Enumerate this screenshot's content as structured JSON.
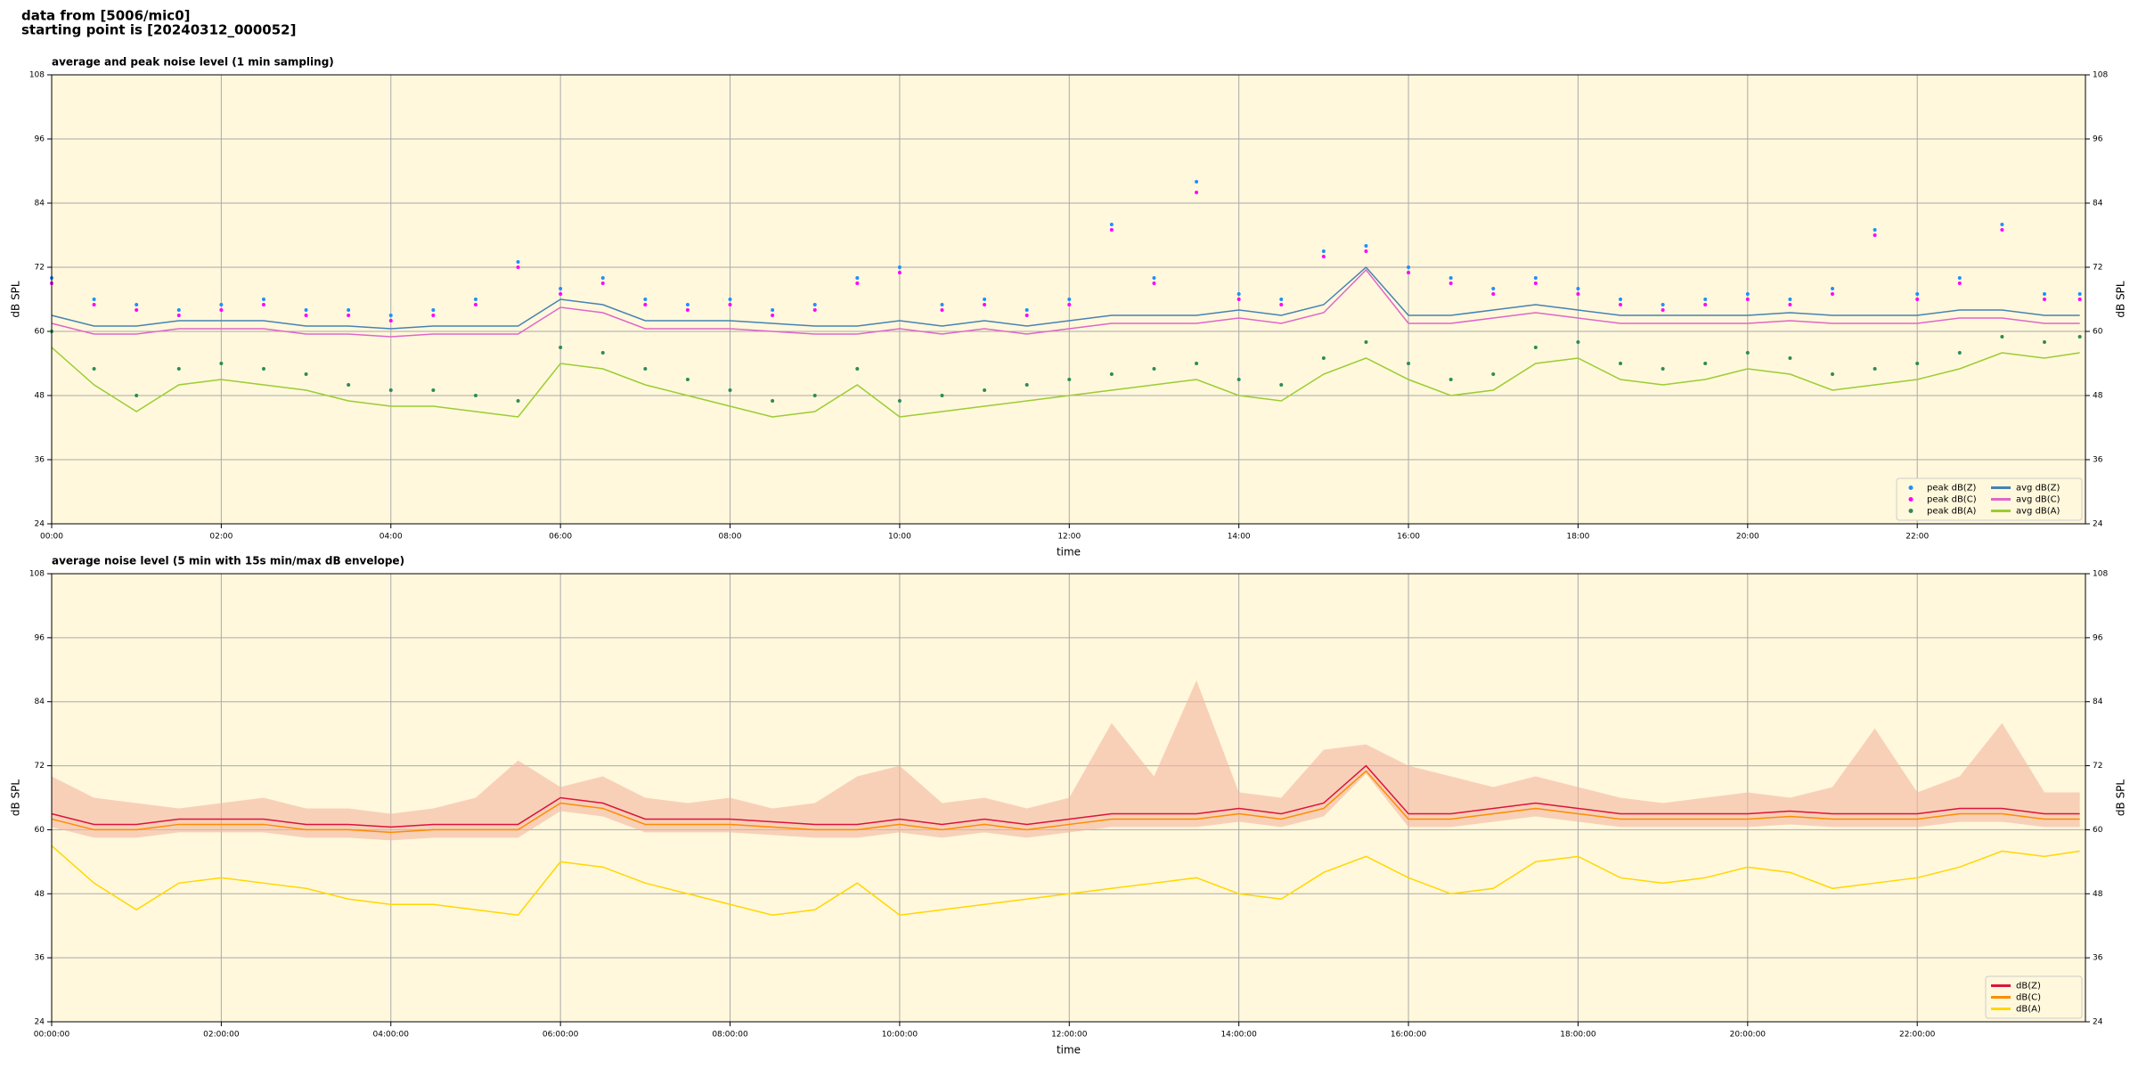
{
  "header": {
    "line1": "data from [5006/mic0]",
    "line2": "starting point is [20240312_000052]"
  },
  "chart_data": [
    {
      "type": "line",
      "title": "average and peak noise level (1 min sampling)",
      "x_label": "time",
      "y_label": "dB SPL",
      "x": [
        0,
        30,
        60,
        90,
        120,
        150,
        180,
        210,
        240,
        270,
        300,
        330,
        360,
        390,
        420,
        450,
        480,
        510,
        540,
        570,
        600,
        630,
        660,
        690,
        720,
        750,
        780,
        810,
        840,
        870,
        900,
        930,
        960,
        990,
        1020,
        1050,
        1080,
        1110,
        1140,
        1170,
        1200,
        1230,
        1260,
        1290,
        1320,
        1350,
        1380,
        1410,
        1435
      ],
      "xlim": [
        0,
        1439
      ],
      "xticks": [
        {
          "value": 0,
          "label": "00:00"
        },
        {
          "value": 120,
          "label": "02:00"
        },
        {
          "value": 240,
          "label": "04:00"
        },
        {
          "value": 360,
          "label": "06:00"
        },
        {
          "value": 480,
          "label": "08:00"
        },
        {
          "value": 600,
          "label": "10:00"
        },
        {
          "value": 720,
          "label": "12:00"
        },
        {
          "value": 840,
          "label": "14:00"
        },
        {
          "value": 960,
          "label": "16:00"
        },
        {
          "value": 1080,
          "label": "18:00"
        },
        {
          "value": 1200,
          "label": "20:00"
        },
        {
          "value": 1320,
          "label": "22:00"
        }
      ],
      "ylim": [
        24,
        108
      ],
      "yticks": [
        24,
        36,
        48,
        60,
        72,
        84,
        96,
        108
      ],
      "grid": true,
      "background": "#fff8dc",
      "legend": "lower right",
      "legend_ncol": 2,
      "series": [
        {
          "name": "peak dB(Z)",
          "style": "markers",
          "color": "#1e90ff",
          "values": [
            70,
            66,
            65,
            64,
            65,
            66,
            64,
            64,
            63,
            64,
            66,
            73,
            68,
            70,
            66,
            65,
            66,
            64,
            65,
            70,
            72,
            65,
            66,
            64,
            66,
            80,
            70,
            88,
            67,
            66,
            75,
            76,
            72,
            70,
            68,
            70,
            68,
            66,
            65,
            66,
            67,
            66,
            68,
            79,
            67,
            70,
            80,
            67,
            67
          ]
        },
        {
          "name": "peak dB(C)",
          "style": "markers",
          "color": "#ff00ff",
          "values": [
            69,
            65,
            64,
            63,
            64,
            65,
            63,
            63,
            62,
            63,
            65,
            72,
            67,
            69,
            65,
            64,
            65,
            63,
            64,
            69,
            71,
            64,
            65,
            63,
            65,
            79,
            69,
            86,
            66,
            65,
            74,
            75,
            71,
            69,
            67,
            69,
            67,
            65,
            64,
            65,
            66,
            65,
            67,
            78,
            66,
            69,
            79,
            66,
            66
          ]
        },
        {
          "name": "peak dB(A)",
          "style": "markers",
          "color": "#2e8b57",
          "values": [
            60,
            53,
            48,
            53,
            54,
            53,
            52,
            50,
            49,
            49,
            48,
            47,
            57,
            56,
            53,
            51,
            49,
            47,
            48,
            53,
            47,
            48,
            49,
            50,
            51,
            52,
            53,
            54,
            51,
            50,
            55,
            58,
            54,
            51,
            52,
            57,
            58,
            54,
            53,
            54,
            56,
            55,
            52,
            53,
            54,
            56,
            59,
            58,
            59
          ]
        },
        {
          "name": "avg dB(Z)",
          "style": "line",
          "color": "#4682b4",
          "values": [
            63,
            61,
            61,
            62,
            62,
            62,
            61,
            61,
            60.5,
            61,
            61,
            61,
            66,
            65,
            62,
            62,
            62,
            61.5,
            61,
            61,
            62,
            61,
            62,
            61,
            62,
            63,
            63,
            63,
            64,
            63,
            65,
            72,
            63,
            63,
            64,
            65,
            64,
            63,
            63,
            63,
            63,
            63.5,
            63,
            63,
            63,
            64,
            64,
            63,
            63
          ]
        },
        {
          "name": "avg dB(C)",
          "style": "line",
          "color": "#e066c8",
          "values": [
            61.5,
            59.5,
            59.5,
            60.5,
            60.5,
            60.5,
            59.5,
            59.5,
            59,
            59.5,
            59.5,
            59.5,
            64.5,
            63.5,
            60.5,
            60.5,
            60.5,
            60,
            59.5,
            59.5,
            60.5,
            59.5,
            60.5,
            59.5,
            60.5,
            61.5,
            61.5,
            61.5,
            62.5,
            61.5,
            63.5,
            71.5,
            61.5,
            61.5,
            62.5,
            63.5,
            62.5,
            61.5,
            61.5,
            61.5,
            61.5,
            62,
            61.5,
            61.5,
            61.5,
            62.5,
            62.5,
            61.5,
            61.5
          ]
        },
        {
          "name": "avg dB(A)",
          "style": "line",
          "color": "#9acd32",
          "values": [
            57,
            50,
            45,
            50,
            51,
            50,
            49,
            47,
            46,
            46,
            45,
            44,
            54,
            53,
            50,
            48,
            46,
            44,
            45,
            50,
            44,
            45,
            46,
            47,
            48,
            49,
            50,
            51,
            48,
            47,
            52,
            55,
            51,
            48,
            49,
            54,
            55,
            51,
            50,
            51,
            53,
            52,
            49,
            50,
            51,
            53,
            56,
            55,
            56
          ]
        }
      ]
    },
    {
      "type": "line",
      "title": "average noise level (5 min with 15s min/max dB envelope)",
      "x_label": "time",
      "y_label": "dB SPL",
      "x": [
        0,
        30,
        60,
        90,
        120,
        150,
        180,
        210,
        240,
        270,
        300,
        330,
        360,
        390,
        420,
        450,
        480,
        510,
        540,
        570,
        600,
        630,
        660,
        690,
        720,
        750,
        780,
        810,
        840,
        870,
        900,
        930,
        960,
        990,
        1020,
        1050,
        1080,
        1110,
        1140,
        1170,
        1200,
        1230,
        1260,
        1290,
        1320,
        1350,
        1380,
        1410,
        1435
      ],
      "xlim": [
        0,
        1439
      ],
      "xticks": [
        {
          "value": 0,
          "label": "00:00:00"
        },
        {
          "value": 120,
          "label": "02:00:00"
        },
        {
          "value": 240,
          "label": "04:00:00"
        },
        {
          "value": 360,
          "label": "06:00:00"
        },
        {
          "value": 480,
          "label": "08:00:00"
        },
        {
          "value": 600,
          "label": "10:00:00"
        },
        {
          "value": 720,
          "label": "12:00:00"
        },
        {
          "value": 840,
          "label": "14:00:00"
        },
        {
          "value": 960,
          "label": "16:00:00"
        },
        {
          "value": 1080,
          "label": "18:00:00"
        },
        {
          "value": 1200,
          "label": "20:00:00"
        },
        {
          "value": 1320,
          "label": "22:00:00"
        }
      ],
      "ylim": [
        24,
        108
      ],
      "yticks": [
        24,
        36,
        48,
        60,
        72,
        84,
        96,
        108
      ],
      "grid": true,
      "background": "#fff8dc",
      "legend": "lower right",
      "legend_ncol": 1,
      "envelope": {
        "color": "#f4b6a0",
        "upper": [
          70,
          66,
          65,
          64,
          65,
          66,
          64,
          64,
          63,
          64,
          66,
          73,
          68,
          70,
          66,
          65,
          66,
          64,
          65,
          70,
          72,
          65,
          66,
          64,
          66,
          80,
          70,
          88,
          67,
          66,
          75,
          76,
          72,
          70,
          68,
          70,
          68,
          66,
          65,
          66,
          67,
          66,
          68,
          79,
          67,
          70,
          80,
          67,
          67
        ],
        "lower": [
          60.5,
          58.5,
          58.5,
          59.5,
          59.5,
          59.5,
          58.5,
          58.5,
          58,
          58.5,
          58.5,
          58.5,
          63.5,
          62.5,
          59.5,
          59.5,
          59.5,
          59,
          58.5,
          58.5,
          59.5,
          58.5,
          59.5,
          58.5,
          59.5,
          60.5,
          60.5,
          60.5,
          61.5,
          60.5,
          62.5,
          70.5,
          60.5,
          60.5,
          61.5,
          62.5,
          61.5,
          60.5,
          60.5,
          60.5,
          60.5,
          61,
          60.5,
          60.5,
          60.5,
          61.5,
          61.5,
          60.5,
          60.5
        ]
      },
      "series": [
        {
          "name": "dB(Z)",
          "style": "line",
          "color": "#dc143c",
          "values": [
            63,
            61,
            61,
            62,
            62,
            62,
            61,
            61,
            60.5,
            61,
            61,
            61,
            66,
            65,
            62,
            62,
            62,
            61.5,
            61,
            61,
            62,
            61,
            62,
            61,
            62,
            63,
            63,
            63,
            64,
            63,
            65,
            72,
            63,
            63,
            64,
            65,
            64,
            63,
            63,
            63,
            63,
            63.5,
            63,
            63,
            63,
            64,
            64,
            63,
            63
          ]
        },
        {
          "name": "dB(C)",
          "style": "line",
          "color": "#ff8c00",
          "values": [
            62,
            60,
            60,
            61,
            61,
            61,
            60,
            60,
            59.5,
            60,
            60,
            60,
            65,
            64,
            61,
            61,
            61,
            60.5,
            60,
            60,
            61,
            60,
            61,
            60,
            61,
            62,
            62,
            62,
            63,
            62,
            64,
            71,
            62,
            62,
            63,
            64,
            63,
            62,
            62,
            62,
            62,
            62.5,
            62,
            62,
            62,
            63,
            63,
            62,
            62
          ]
        },
        {
          "name": "dB(A)",
          "style": "line",
          "color": "#ffd700",
          "values": [
            57,
            50,
            45,
            50,
            51,
            50,
            49,
            47,
            46,
            46,
            45,
            44,
            54,
            53,
            50,
            48,
            46,
            44,
            45,
            50,
            44,
            45,
            46,
            47,
            48,
            49,
            50,
            51,
            48,
            47,
            52,
            55,
            51,
            48,
            49,
            54,
            55,
            51,
            50,
            51,
            53,
            52,
            49,
            50,
            51,
            53,
            56,
            55,
            56
          ]
        }
      ]
    }
  ]
}
